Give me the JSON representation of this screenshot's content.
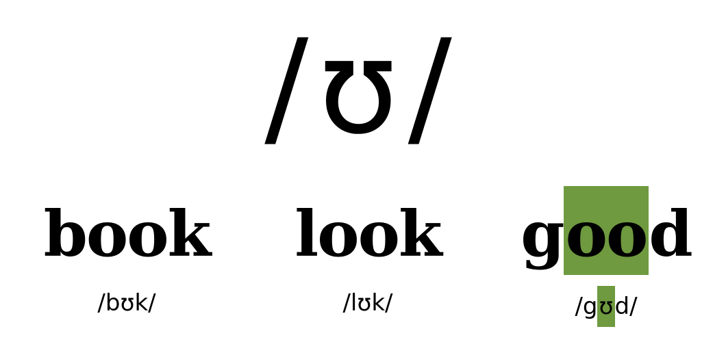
{
  "phoneme": {
    "open_slash": "/",
    "symbol": "ʊ",
    "close_slash": "/"
  },
  "highlight_color": "#6f9a3f",
  "examples": [
    {
      "word": {
        "before": "book",
        "highlight": "",
        "after": ""
      },
      "transcription": {
        "before": "/bʊk/",
        "highlight": "",
        "after": ""
      }
    },
    {
      "word": {
        "before": "look",
        "highlight": "",
        "after": ""
      },
      "transcription": {
        "before": "/lʊk/",
        "highlight": "",
        "after": ""
      }
    },
    {
      "word": {
        "before": "g",
        "highlight": "oo",
        "after": "d"
      },
      "transcription": {
        "before": "/g",
        "highlight": "ʊ",
        "after": "d/"
      }
    }
  ]
}
